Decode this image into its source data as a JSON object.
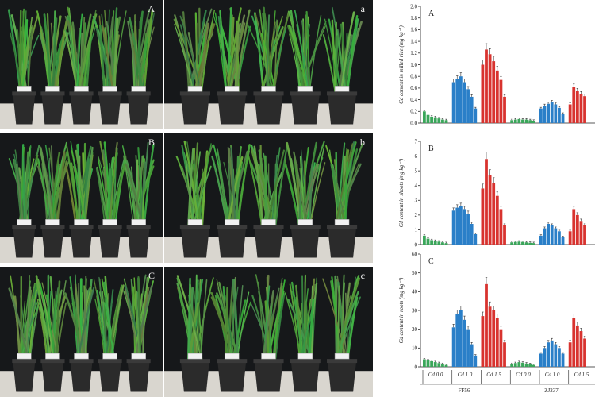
{
  "photos": {
    "panel_labels": [
      "A",
      "a",
      "B",
      "b",
      "C",
      "c"
    ]
  },
  "colors": {
    "green": "#3aa65a",
    "blue": "#2a7fc8",
    "red": "#d8332f",
    "plant": "#3f8f3a",
    "pot": "#2b2b2b",
    "backdrop": "#16181a"
  },
  "chart_data": [
    {
      "type": "bar",
      "panel_label": "A",
      "ylabel": "Cd content in milled rice (mg·kg⁻¹)",
      "ylim": [
        0,
        2.0
      ],
      "yticks": [
        "0.0",
        "0.2",
        "0.4",
        "0.6",
        "0.8",
        "1.0",
        "1.2",
        "1.4",
        "1.6",
        "1.8",
        "2.0"
      ],
      "series": [
        {
          "group": "Cd 0.0",
          "variety": "FF56",
          "color": "green",
          "values": [
            0.2,
            0.14,
            0.11,
            0.1,
            0.08,
            0.06,
            0.05
          ]
        },
        {
          "group": "Cd 1.0",
          "variety": "FF56",
          "color": "blue",
          "values": [
            0.7,
            0.75,
            0.8,
            0.7,
            0.58,
            0.45,
            0.25
          ]
        },
        {
          "group": "Cd 1.5",
          "variety": "FF56",
          "color": "red",
          "values": [
            1.0,
            1.26,
            1.18,
            1.06,
            0.9,
            0.74,
            0.45
          ]
        },
        {
          "group": "Cd 0.0",
          "variety": "ZJ237",
          "color": "green",
          "values": [
            0.05,
            0.06,
            0.07,
            0.06,
            0.06,
            0.05,
            0.04
          ]
        },
        {
          "group": "Cd 1.0",
          "variety": "ZJ237",
          "color": "blue",
          "values": [
            0.25,
            0.3,
            0.33,
            0.36,
            0.32,
            0.26,
            0.16
          ]
        },
        {
          "group": "Cd 1.5",
          "variety": "ZJ237",
          "color": "red",
          "values": [
            0.32,
            0.62,
            0.55,
            0.5,
            0.46
          ]
        }
      ]
    },
    {
      "type": "bar",
      "panel_label": "B",
      "ylabel": "Cd content in shoots (mg·kg⁻¹)",
      "ylim": [
        0,
        7
      ],
      "yticks": [
        "0",
        "1",
        "2",
        "3",
        "4",
        "5",
        "6",
        "7"
      ],
      "series": [
        {
          "group": "Cd 0.0",
          "variety": "FF56",
          "color": "green",
          "values": [
            0.6,
            0.4,
            0.3,
            0.25,
            0.2,
            0.15,
            0.1
          ]
        },
        {
          "group": "Cd 1.0",
          "variety": "FF56",
          "color": "blue",
          "values": [
            2.3,
            2.5,
            2.6,
            2.4,
            2.1,
            1.4,
            0.7
          ]
        },
        {
          "group": "Cd 1.5",
          "variety": "FF56",
          "color": "red",
          "values": [
            3.8,
            5.8,
            4.7,
            4.2,
            3.3,
            2.4,
            1.3
          ]
        },
        {
          "group": "Cd 0.0",
          "variety": "ZJ237",
          "color": "green",
          "values": [
            0.15,
            0.18,
            0.2,
            0.18,
            0.15,
            0.12,
            0.1
          ]
        },
        {
          "group": "Cd 1.0",
          "variety": "ZJ237",
          "color": "blue",
          "values": [
            0.6,
            1.1,
            1.4,
            1.3,
            1.1,
            0.9,
            0.5
          ]
        },
        {
          "group": "Cd 1.5",
          "variety": "ZJ237",
          "color": "red",
          "values": [
            0.9,
            2.4,
            2.0,
            1.6,
            1.3
          ]
        }
      ]
    },
    {
      "type": "bar",
      "panel_label": "C",
      "ylabel": "Cd content in roots (mg·kg⁻¹)",
      "ylim": [
        0,
        60
      ],
      "yticks": [
        "0",
        "10",
        "20",
        "30",
        "40",
        "50",
        "60"
      ],
      "series": [
        {
          "group": "Cd 0.0",
          "variety": "FF56",
          "color": "green",
          "values": [
            4.0,
            3.5,
            3.0,
            2.5,
            2.0,
            1.5,
            1.0
          ]
        },
        {
          "group": "Cd 1.0",
          "variety": "FF56",
          "color": "blue",
          "values": [
            21,
            28,
            30,
            25,
            20,
            12,
            6
          ]
        },
        {
          "group": "Cd 1.5",
          "variety": "FF56",
          "color": "red",
          "values": [
            27,
            44,
            32,
            30,
            26,
            20,
            13
          ]
        },
        {
          "group": "Cd 0.0",
          "variety": "ZJ237",
          "color": "green",
          "values": [
            1.5,
            2.0,
            2.5,
            2.2,
            1.8,
            1.4,
            1.0
          ]
        },
        {
          "group": "Cd 1.0",
          "variety": "ZJ237",
          "color": "blue",
          "values": [
            7,
            10,
            13,
            14,
            12,
            10,
            7
          ]
        },
        {
          "group": "Cd 1.5",
          "variety": "ZJ237",
          "color": "red",
          "values": [
            13,
            26,
            22,
            19,
            15
          ]
        }
      ]
    }
  ],
  "x_axis": {
    "group_labels": [
      "Cd 0.0",
      "Cd 1.0",
      "Cd 1.5",
      "Cd 0.0",
      "Cd 1.0",
      "Cd 1.5"
    ],
    "variety_labels": [
      "FF56",
      "ZJ237"
    ]
  }
}
